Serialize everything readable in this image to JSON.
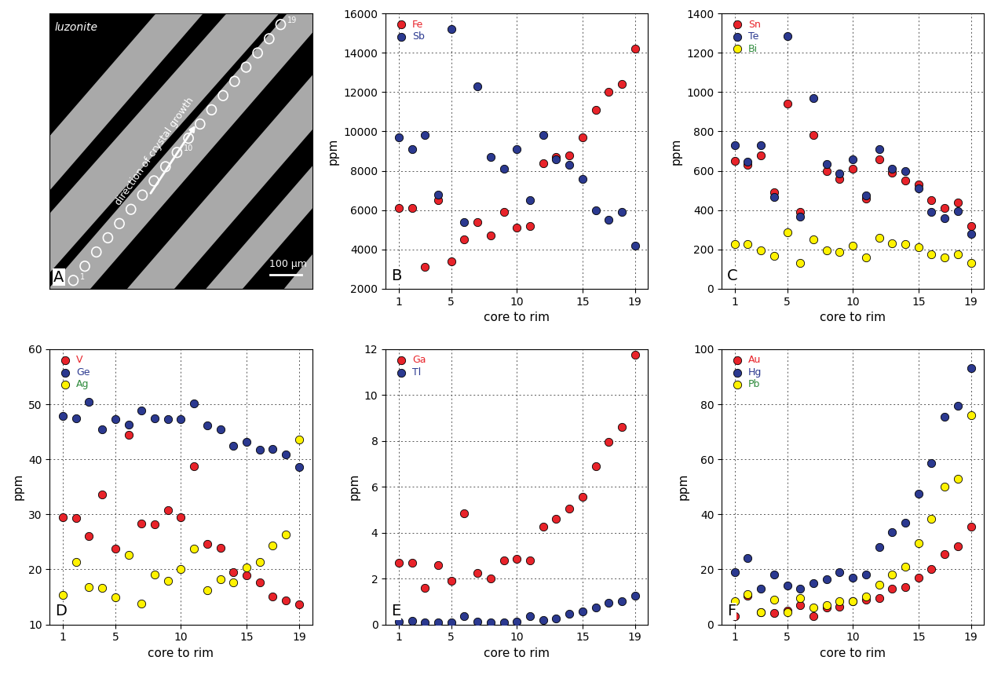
{
  "chart_data": [
    {
      "type": "image",
      "panel": "A",
      "title": "luzonite",
      "annotations": [
        "direction of crystal growth",
        "100 μm"
      ],
      "spots": [
        1,
        2,
        3,
        4,
        5,
        6,
        7,
        8,
        9,
        10,
        11,
        12,
        13,
        14,
        15,
        16,
        17,
        18,
        19
      ],
      "labeled_spots": [
        1,
        10,
        19
      ]
    },
    {
      "type": "scatter",
      "panel": "B",
      "x_label": "core to rim",
      "y_label": "ppm",
      "x": [
        1,
        2,
        3,
        4,
        5,
        6,
        7,
        8,
        9,
        10,
        11,
        12,
        13,
        14,
        15,
        16,
        17,
        18,
        19
      ],
      "xlim": [
        0,
        20
      ],
      "xticks": [
        1,
        5,
        10,
        15,
        19
      ],
      "ylim": [
        2000,
        16000
      ],
      "yticks": [
        2000,
        4000,
        6000,
        8000,
        10000,
        12000,
        14000,
        16000
      ],
      "grid": true,
      "legend": "upper left",
      "marker": "o",
      "series": [
        {
          "name": "Fe",
          "color": "#e8232a",
          "values": [
            6100,
            6100,
            3100,
            6500,
            3400,
            4500,
            5400,
            4700,
            5900,
            5100,
            5200,
            8400,
            8700,
            8800,
            9700,
            11100,
            12000,
            12400,
            14200
          ]
        },
        {
          "name": "Sb",
          "color": "#2b3990",
          "values": [
            9700,
            9100,
            9800,
            6800,
            15200,
            5400,
            12300,
            8700,
            8100,
            9100,
            6500,
            9800,
            8600,
            8300,
            7600,
            6000,
            5500,
            5900,
            4200
          ]
        }
      ]
    },
    {
      "type": "scatter",
      "panel": "C",
      "x_label": "core to rim",
      "y_label": "ppm",
      "x": [
        1,
        2,
        3,
        4,
        5,
        6,
        7,
        8,
        9,
        10,
        11,
        12,
        13,
        14,
        15,
        16,
        17,
        18,
        19
      ],
      "xlim": [
        0,
        20
      ],
      "xticks": [
        1,
        5,
        10,
        15,
        19
      ],
      "ylim": [
        0,
        1400
      ],
      "yticks": [
        0,
        200,
        400,
        600,
        800,
        1000,
        1200,
        1400
      ],
      "grid": true,
      "legend": "upper left",
      "marker": "o",
      "series": [
        {
          "name": "Sn",
          "color": "#e8232a",
          "values": [
            650,
            630,
            680,
            490,
            940,
            390,
            780,
            600,
            560,
            610,
            460,
            660,
            590,
            550,
            530,
            450,
            410,
            440,
            320
          ]
        },
        {
          "name": "Te",
          "color": "#2b3990",
          "values": [
            730,
            645,
            730,
            465,
            1285,
            365,
            970,
            635,
            585,
            660,
            475,
            710,
            610,
            600,
            510,
            390,
            360,
            395,
            280
          ]
        },
        {
          "name": "Bi",
          "color": "#fff200",
          "values": [
            225,
            225,
            195,
            165,
            285,
            130,
            250,
            195,
            185,
            220,
            160,
            260,
            230,
            225,
            210,
            175,
            160,
            175,
            130
          ]
        }
      ]
    },
    {
      "type": "scatter",
      "panel": "D",
      "x_label": "core to rim",
      "y_label": "ppm",
      "x": [
        1,
        2,
        3,
        4,
        5,
        6,
        7,
        8,
        9,
        10,
        11,
        12,
        13,
        14,
        15,
        16,
        17,
        18,
        19
      ],
      "xlim": [
        0,
        20
      ],
      "xticks": [
        1,
        5,
        10,
        15,
        19
      ],
      "ylim": [
        10,
        60
      ],
      "yticks": [
        10,
        20,
        30,
        40,
        50,
        60
      ],
      "grid": true,
      "legend": "upper left",
      "marker": "o",
      "series": [
        {
          "name": "V",
          "color": "#e8232a",
          "values": [
            29.5,
            29.3,
            26,
            33.6,
            23.8,
            44.5,
            28.3,
            28.2,
            30.8,
            29.5,
            38.7,
            24.6,
            23.9,
            19.5,
            18.9,
            17.6,
            15,
            14.4,
            13.6
          ]
        },
        {
          "name": "Ge",
          "color": "#2b3990",
          "values": [
            47.8,
            47.4,
            50.4,
            45.4,
            47.3,
            46.3,
            48.8,
            47.5,
            47.3,
            47.3,
            50.1,
            46.2,
            45.5,
            42.5,
            43.2,
            41.8,
            41.9,
            40.9,
            38.6
          ]
        },
        {
          "name": "Ag",
          "color": "#fff200",
          "values": [
            15.4,
            21.3,
            16.8,
            16.6,
            14.9,
            22.6,
            13.8,
            19,
            17.9,
            20.1,
            23.8,
            16.2,
            18.2,
            17.7,
            20.3,
            21.4,
            24.3,
            26.4,
            43.6
          ]
        }
      ]
    },
    {
      "type": "scatter",
      "panel": "E",
      "x_label": "core to rim",
      "y_label": "ppm",
      "x": [
        1,
        2,
        3,
        4,
        5,
        6,
        7,
        8,
        9,
        10,
        11,
        12,
        13,
        14,
        15,
        16,
        17,
        18,
        19
      ],
      "xlim": [
        0,
        20
      ],
      "xticks": [
        1,
        5,
        10,
        15,
        19
      ],
      "ylim": [
        0,
        12
      ],
      "yticks": [
        0,
        2,
        4,
        6,
        8,
        10,
        12
      ],
      "grid": true,
      "legend": "upper left",
      "marker": "o",
      "series": [
        {
          "name": "Ga",
          "color": "#e8232a",
          "values": [
            2.7,
            2.7,
            1.6,
            2.6,
            1.9,
            4.85,
            2.25,
            2.0,
            2.8,
            2.85,
            2.8,
            4.25,
            4.6,
            5.05,
            5.55,
            6.9,
            7.95,
            8.6,
            11.75
          ]
        },
        {
          "name": "Tl",
          "color": "#2b3990",
          "values": [
            0.12,
            0.15,
            0.08,
            0.1,
            0.08,
            0.35,
            0.12,
            0.08,
            0.1,
            0.12,
            0.35,
            0.2,
            0.25,
            0.45,
            0.55,
            0.75,
            0.95,
            1.0,
            1.25
          ]
        }
      ]
    },
    {
      "type": "scatter",
      "panel": "F",
      "x_label": "core to rim",
      "y_label": "ppm",
      "x": [
        1,
        2,
        3,
        4,
        5,
        6,
        7,
        8,
        9,
        10,
        11,
        12,
        13,
        14,
        15,
        16,
        17,
        18,
        19
      ],
      "xlim": [
        0,
        20
      ],
      "xticks": [
        1,
        5,
        10,
        15,
        19
      ],
      "ylim": [
        0,
        100
      ],
      "yticks": [
        0,
        20,
        40,
        60,
        80,
        100
      ],
      "grid": true,
      "legend": "upper left",
      "marker": "o",
      "series": [
        {
          "name": "Au",
          "color": "#e8232a",
          "values": [
            3,
            10.5,
            4.5,
            4,
            5,
            7,
            3,
            6,
            6.5,
            8.5,
            9,
            9.5,
            13,
            13.5,
            17,
            20,
            25.5,
            28.5,
            35.5
          ]
        },
        {
          "name": "Hg",
          "color": "#2b3990",
          "values": [
            19,
            24,
            13,
            18,
            14,
            13,
            15,
            16.5,
            19,
            17,
            18,
            28,
            33.5,
            37,
            47.5,
            58.5,
            75.5,
            79.5,
            93
          ]
        },
        {
          "name": "Pb",
          "color": "#fff200",
          "values": [
            8.5,
            11,
            4.5,
            9,
            4.5,
            9.5,
            6,
            7,
            8.5,
            8.5,
            10,
            14.5,
            18,
            21,
            29.5,
            38.5,
            50,
            53,
            76
          ]
        }
      ]
    }
  ]
}
